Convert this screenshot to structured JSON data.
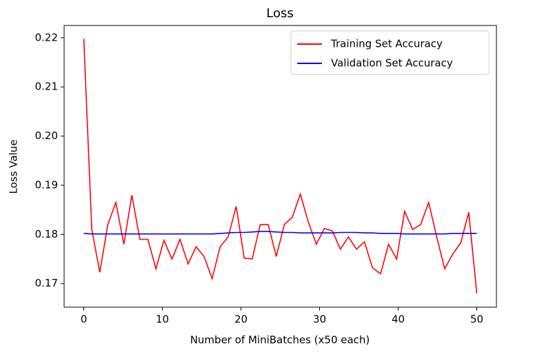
{
  "chart_data": {
    "type": "line",
    "title": "Loss",
    "x_label": "Number of MiniBatches (x50 each)",
    "y_label": "Loss Value",
    "x": [
      0,
      1.02,
      2.04,
      3.06,
      4.08,
      5.1,
      6.12,
      7.14,
      8.16,
      9.18,
      10.2,
      11.22,
      12.24,
      13.27,
      14.29,
      15.31,
      16.33,
      17.35,
      18.37,
      19.39,
      20.41,
      21.43,
      22.45,
      23.47,
      24.49,
      25.51,
      26.53,
      27.55,
      28.57,
      29.59,
      30.61,
      31.63,
      32.65,
      33.67,
      34.69,
      35.71,
      36.73,
      37.76,
      38.78,
      39.8,
      40.82,
      41.84,
      42.86,
      43.88,
      44.9,
      45.92,
      46.94,
      47.96,
      48.98,
      50
    ],
    "series": [
      {
        "name": "Training Set Accuracy",
        "color": "#ff0000",
        "values": [
          0.2198,
          0.181,
          0.1723,
          0.182,
          0.1865,
          0.178,
          0.188,
          0.179,
          0.179,
          0.173,
          0.1788,
          0.175,
          0.179,
          0.174,
          0.1775,
          0.1755,
          0.171,
          0.1775,
          0.1795,
          0.1857,
          0.1752,
          0.175,
          0.182,
          0.182,
          0.1755,
          0.182,
          0.1835,
          0.1882,
          0.1825,
          0.178,
          0.1812,
          0.1807,
          0.177,
          0.1795,
          0.177,
          0.1785,
          0.1732,
          0.172,
          0.178,
          0.175,
          0.1847,
          0.181,
          0.182,
          0.1865,
          0.1795,
          0.173,
          0.176,
          0.1783,
          0.1845,
          0.168
        ]
      },
      {
        "name": "Validation Set Accuracy",
        "color": "#0000ff",
        "values": [
          0.1802,
          0.1801,
          0.1801,
          0.1801,
          0.1801,
          0.1801,
          0.1801,
          0.1801,
          0.1801,
          0.1801,
          0.1801,
          0.1801,
          0.1801,
          0.1801,
          0.1801,
          0.1801,
          0.1801,
          0.1802,
          0.1803,
          0.1804,
          0.1804,
          0.1805,
          0.1806,
          0.1806,
          0.1805,
          0.1804,
          0.1804,
          0.1803,
          0.1803,
          0.1803,
          0.1803,
          0.1803,
          0.1804,
          0.1804,
          0.1804,
          0.1803,
          0.1803,
          0.1802,
          0.1802,
          0.1802,
          0.1801,
          0.1801,
          0.1801,
          0.1801,
          0.1801,
          0.1801,
          0.1802,
          0.1802,
          0.1802,
          0.1802
        ]
      }
    ],
    "xlim": [
      -2.5,
      52.5
    ],
    "xticks": [
      0,
      10,
      20,
      30,
      40,
      50
    ],
    "ylim": [
      0.1652,
      0.2225
    ],
    "yticks": [
      0.17,
      0.18,
      0.19,
      {
        "value": 0.2,
        "label": "0.20"
      },
      0.21,
      0.22
    ],
    "grid": false,
    "legend": "upper right"
  }
}
